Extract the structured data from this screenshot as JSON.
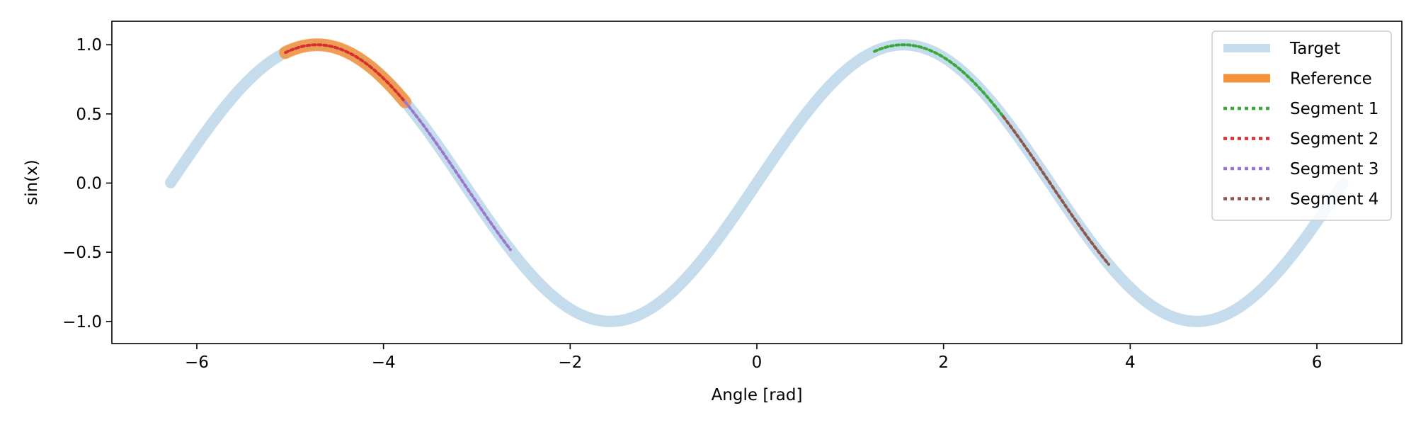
{
  "chart_data": {
    "type": "line",
    "title": "",
    "xlabel": "Angle [rad]",
    "ylabel": "sin(x)",
    "xlim": [
      -6.91,
      6.91
    ],
    "ylim": [
      -1.16,
      1.17
    ],
    "x_ticks": [
      -6,
      -4,
      -2,
      0,
      2,
      4,
      6
    ],
    "x_tick_labels": [
      "−6",
      "−4",
      "−2",
      "0",
      "2",
      "4",
      "6"
    ],
    "y_ticks": [
      -1.0,
      -0.5,
      0.0,
      0.5,
      1.0
    ],
    "y_tick_labels": [
      "−1.0",
      "−0.5",
      "0.0",
      "0.5",
      "1.0"
    ],
    "grid": false,
    "legend_position": "top-right",
    "function": "sin",
    "series": [
      {
        "name": "Target",
        "x_range": [
          -6.28,
          6.28
        ],
        "color": "#c5dcec",
        "style": "solid-thick"
      },
      {
        "name": "Reference",
        "x_range": [
          -5.05,
          -3.77
        ],
        "color": "#f4923c",
        "style": "solid-thick"
      },
      {
        "name": "Segment 1",
        "x_range": [
          1.26,
          2.64
        ],
        "color": "#3aa83a",
        "style": "dotted"
      },
      {
        "name": "Segment 2",
        "x_range": [
          -5.05,
          -3.77
        ],
        "color": "#d62f2f",
        "style": "dotted"
      },
      {
        "name": "Segment 3",
        "x_range": [
          -3.77,
          -2.64
        ],
        "color": "#9a77cf",
        "style": "dotted"
      },
      {
        "name": "Segment 4",
        "x_range": [
          2.64,
          3.77
        ],
        "color": "#8c564b",
        "style": "dotted"
      }
    ]
  }
}
